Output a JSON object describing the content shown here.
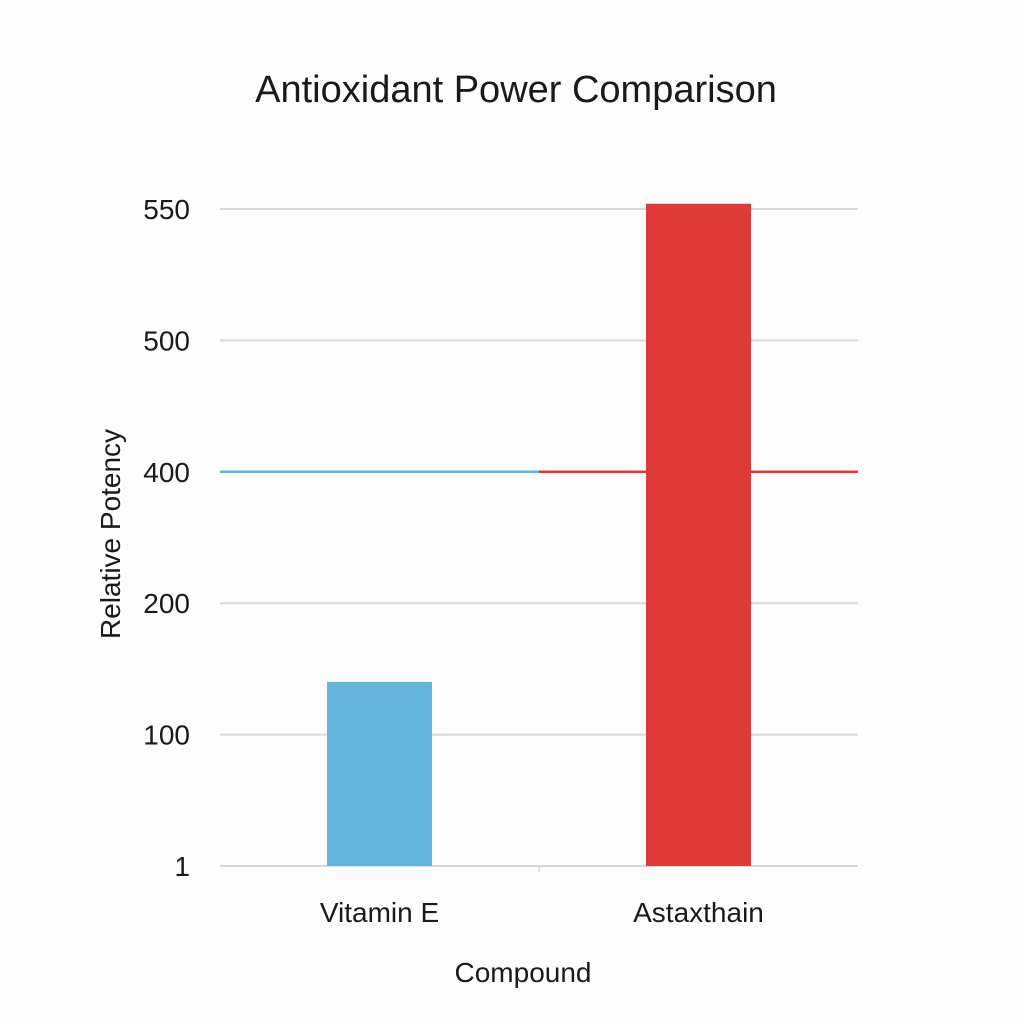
{
  "chart_data": {
    "type": "bar",
    "title": "Antioxidant Power Comparison",
    "xlabel": "Compound",
    "ylabel": "Relative Potency",
    "categories": [
      "Vitamin E",
      "Astaxthain"
    ],
    "values": [
      140,
      552
    ],
    "colors": [
      "#63b5dd",
      "#e03a38"
    ],
    "y_ticks": [
      1,
      100,
      200,
      400,
      500,
      550
    ],
    "y_scale": "non-uniform (ticks evenly spaced)",
    "ylim": [
      1,
      550
    ],
    "grid": true,
    "reference_line": {
      "value": 400,
      "colors": [
        "#63b5dd",
        "#e03a38"
      ]
    }
  }
}
